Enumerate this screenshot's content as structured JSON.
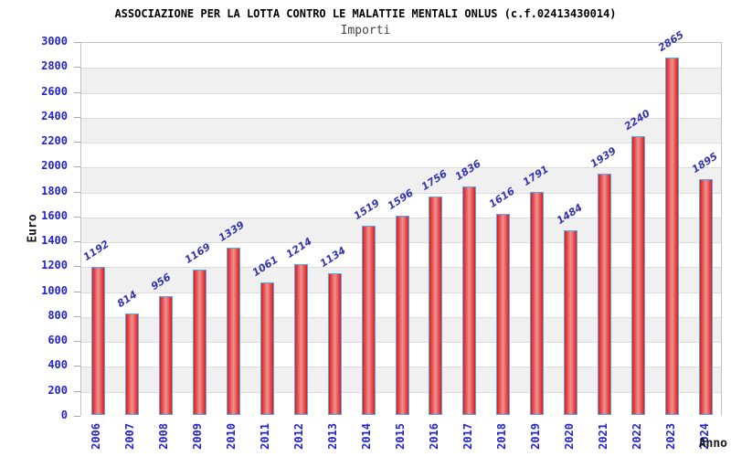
{
  "header": {
    "title": "ASSOCIAZIONE PER LA LOTTA CONTRO LE MALATTIE MENTALI ONLUS (c.f.02413430014)",
    "subtitle": "Importi"
  },
  "chart_data": {
    "type": "bar",
    "title": "ASSOCIAZIONE PER LA LOTTA CONTRO LE MALATTIE MENTALI ONLUS (c.f.02413430014)",
    "subtitle": "Importi",
    "xlabel": "Anno",
    "ylabel": "Euro",
    "categories": [
      "2006",
      "2007",
      "2008",
      "2009",
      "2010",
      "2011",
      "2012",
      "2013",
      "2014",
      "2015",
      "2016",
      "2017",
      "2018",
      "2019",
      "2020",
      "2021",
      "2022",
      "2023",
      "2024"
    ],
    "values": [
      1192,
      814,
      956,
      1169,
      1339,
      1061,
      1214,
      1134,
      1519,
      1596,
      1756,
      1836,
      1616,
      1791,
      1484,
      1939,
      2240,
      2865,
      1895
    ],
    "ylim": [
      0,
      3000
    ],
    "ytick_step": 200,
    "y_ticks": [
      "0",
      "200",
      "400",
      "600",
      "800",
      "1000",
      "1200",
      "1400",
      "1600",
      "1800",
      "2000",
      "2200",
      "2400",
      "2600",
      "2800",
      "3000"
    ],
    "grid": "horizontal gridlines with alternating white/gray bands, legend none",
    "colors": {
      "bar_edge_fill": "#e01919",
      "bar_center_fill": "#ef9393",
      "bar_border": "#55a9f0",
      "axis_text_blue": "#2323cf",
      "value_label_blue": "#3434ad",
      "band_gray": "#f0f0f0",
      "gridline": "#dcdcdc",
      "plot_border": "#c3c3c3",
      "title_color": "#000000"
    }
  }
}
